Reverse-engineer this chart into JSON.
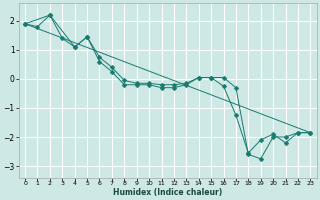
{
  "xlabel": "Humidex (Indice chaleur)",
  "ylabel": "",
  "background_color": "#cde8e5",
  "grid_color": "#ffffff",
  "line_color": "#1a7a6e",
  "xlim": [
    -0.5,
    23.5
  ],
  "ylim": [
    -3.4,
    2.6
  ],
  "xticks": [
    0,
    1,
    2,
    3,
    4,
    5,
    6,
    7,
    8,
    9,
    10,
    11,
    12,
    13,
    14,
    15,
    16,
    17,
    18,
    19,
    20,
    21,
    22,
    23
  ],
  "yticks": [
    -3,
    -2,
    -1,
    0,
    1,
    2
  ],
  "series": [
    {
      "x": [
        0,
        1,
        2,
        3,
        4,
        5,
        6,
        7,
        8,
        9,
        10,
        11,
        12,
        13,
        14,
        15,
        16,
        17,
        18,
        19,
        20,
        21,
        22,
        23
      ],
      "y": [
        1.9,
        1.8,
        2.2,
        1.4,
        1.1,
        1.45,
        0.75,
        0.4,
        -0.05,
        -0.15,
        -0.15,
        -0.2,
        -0.2,
        -0.15,
        0.05,
        0.05,
        -0.25,
        -1.25,
        -2.55,
        -2.1,
        -1.9,
        -2.2,
        -1.85,
        -1.85
      ],
      "has_marker": true
    },
    {
      "x": [
        0,
        2,
        4,
        5,
        6,
        7,
        8,
        9,
        10,
        11,
        12,
        13,
        14,
        15,
        16,
        17,
        18,
        19,
        20,
        21,
        22,
        23
      ],
      "y": [
        1.9,
        2.2,
        1.1,
        1.45,
        0.6,
        0.25,
        -0.2,
        -0.2,
        -0.2,
        -0.3,
        -0.3,
        -0.2,
        0.05,
        0.05,
        0.05,
        -0.3,
        -2.6,
        -2.75,
        -2.0,
        -2.0,
        -1.85,
        -1.85
      ],
      "has_marker": true
    },
    {
      "x": [
        0,
        23
      ],
      "y": [
        1.9,
        -1.85
      ],
      "has_marker": false
    }
  ],
  "marker": "D",
  "markersize": 2.5
}
